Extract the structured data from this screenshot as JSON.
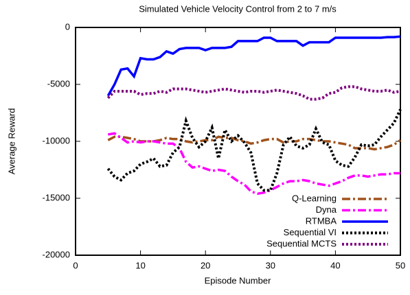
{
  "chart_data": {
    "type": "line",
    "title": "Simulated Vehicle Velocity Control from 2 to 7 m/s",
    "xlabel": "Episode Number",
    "ylabel": "Average Reward",
    "x": [
      5,
      6,
      7,
      8,
      9,
      10,
      11,
      12,
      13,
      14,
      15,
      16,
      17,
      18,
      19,
      20,
      21,
      22,
      23,
      24,
      25,
      26,
      27,
      28,
      29,
      30,
      31,
      32,
      33,
      34,
      35,
      36,
      37,
      38,
      39,
      40,
      41,
      42,
      43,
      44,
      45,
      46,
      47,
      48,
      49,
      50
    ],
    "series": [
      {
        "name": "Q-Learning",
        "color": "#a0521c",
        "dash": "dash-dot",
        "values": [
          -9900,
          -9600,
          -9600,
          -9700,
          -9800,
          -10000,
          -10000,
          -10000,
          -9900,
          -9700,
          -9800,
          -9800,
          -10000,
          -10100,
          -10000,
          -9900,
          -9900,
          -9600,
          -9700,
          -9700,
          -9900,
          -10000,
          -10200,
          -10100,
          -9900,
          -9800,
          -9800,
          -10100,
          -10000,
          -10000,
          -9800,
          -9800,
          -9900,
          -10000,
          -10000,
          -10100,
          -10200,
          -10300,
          -10600,
          -10600,
          -10600,
          -10700,
          -10600,
          -10500,
          -10300,
          -9900
        ]
      },
      {
        "name": "Dyna",
        "color": "#ff00ff",
        "dash": "dash-dot",
        "values": [
          -9400,
          -9300,
          -9700,
          -10100,
          -10000,
          -10100,
          -10000,
          -10000,
          -10100,
          -10200,
          -10200,
          -10600,
          -11800,
          -12300,
          -12200,
          -12400,
          -12600,
          -12500,
          -12600,
          -13100,
          -13500,
          -13800,
          -14400,
          -14600,
          -14500,
          -14300,
          -14000,
          -13700,
          -13500,
          -13500,
          -13400,
          -13500,
          -13700,
          -13800,
          -13900,
          -13700,
          -13500,
          -13200,
          -13000,
          -13000,
          -13100,
          -13000,
          -12900,
          -12900,
          -12800,
          -12800
        ]
      },
      {
        "name": "RTMBA",
        "color": "#0000ff",
        "dash": "solid",
        "values": [
          -6000,
          -5000,
          -3700,
          -3600,
          -4300,
          -2700,
          -2800,
          -2800,
          -2600,
          -2100,
          -2300,
          -1900,
          -1800,
          -1800,
          -1800,
          -2000,
          -1800,
          -1800,
          -1800,
          -1700,
          -1200,
          -1200,
          -1200,
          -1200,
          -900,
          -900,
          -1200,
          -1200,
          -1200,
          -1200,
          -1600,
          -1300,
          -1300,
          -1300,
          -1300,
          -900,
          -900,
          -900,
          -900,
          -900,
          -900,
          -900,
          -900,
          -850,
          -850,
          -800
        ]
      },
      {
        "name": "Sequential VI",
        "color": "#000000",
        "dash": "dotted",
        "values": [
          -12400,
          -13100,
          -13400,
          -12800,
          -12600,
          -12000,
          -11800,
          -11500,
          -12200,
          -12100,
          -11000,
          -10500,
          -8200,
          -9700,
          -10500,
          -10000,
          -8800,
          -11500,
          -9000,
          -10000,
          -9500,
          -10100,
          -11000,
          -13700,
          -14300,
          -14300,
          -12800,
          -10300,
          -9600,
          -10400,
          -10600,
          -10300,
          -8900,
          -10100,
          -10300,
          -11700,
          -12100,
          -12200,
          -11400,
          -10300,
          -10400,
          -10300,
          -9600,
          -9000,
          -8400,
          -7200
        ]
      },
      {
        "name": "Sequential MCTS",
        "color": "#800080",
        "dash": "dotted",
        "values": [
          -6200,
          -5600,
          -5600,
          -5600,
          -5600,
          -5900,
          -5800,
          -5800,
          -5600,
          -5700,
          -5400,
          -5400,
          -5400,
          -5500,
          -5600,
          -5700,
          -5600,
          -5500,
          -5400,
          -5500,
          -5600,
          -5700,
          -5600,
          -5600,
          -5700,
          -5600,
          -5500,
          -5600,
          -5700,
          -5800,
          -6000,
          -6300,
          -6300,
          -6200,
          -5800,
          -5700,
          -5300,
          -5200,
          -5200,
          -5400,
          -5500,
          -5600,
          -5600,
          -5500,
          -5700,
          -5600
        ]
      }
    ],
    "xlim": [
      0,
      50
    ],
    "xticks": [
      0,
      10,
      20,
      30,
      40,
      50
    ],
    "ylim": [
      -20000,
      0
    ],
    "yticks": [
      -20000,
      -15000,
      -10000,
      -5000,
      0
    ],
    "legend": "bottom right"
  }
}
